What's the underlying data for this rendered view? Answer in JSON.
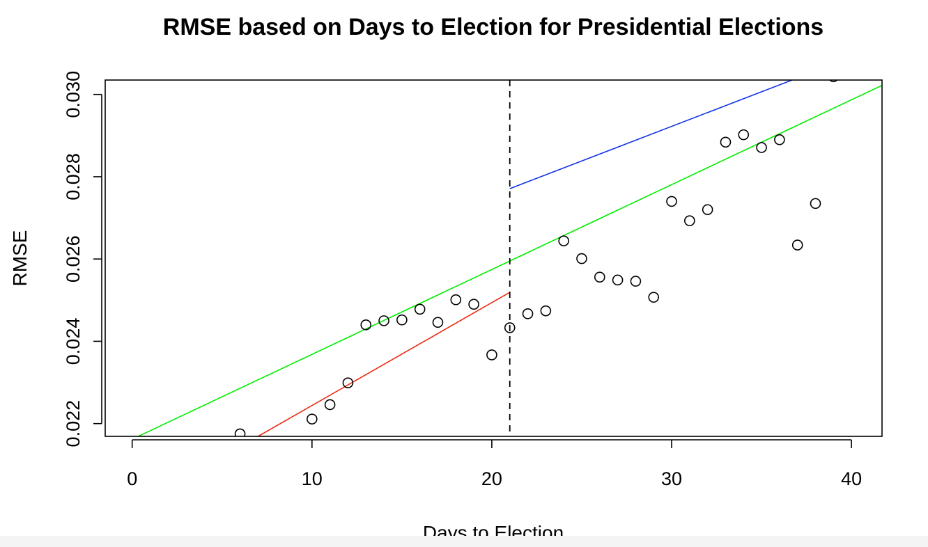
{
  "chart_data": {
    "type": "scatter",
    "title": "RMSE based on Days to Election for Presidential Elections",
    "xlabel": "Days to Election",
    "ylabel": "RMSE",
    "xlim": [
      -1.5,
      41.7
    ],
    "ylim": [
      0.02169,
      0.03035
    ],
    "xticks": [
      0,
      10,
      20,
      30,
      40
    ],
    "xtick_labels": [
      "0",
      "10",
      "20",
      "30",
      "40"
    ],
    "yticks": [
      0.022,
      0.024,
      0.026,
      0.028,
      0.03
    ],
    "ytick_labels": [
      "0.022",
      "0.024",
      "0.026",
      "0.028",
      "0.030"
    ],
    "grid": false,
    "points": [
      {
        "x": 6,
        "y": 0.02175
      },
      {
        "x": 10,
        "y": 0.02211
      },
      {
        "x": 11,
        "y": 0.02246
      },
      {
        "x": 12,
        "y": 0.02299
      },
      {
        "x": 13,
        "y": 0.0244
      },
      {
        "x": 14,
        "y": 0.0245
      },
      {
        "x": 15,
        "y": 0.02452
      },
      {
        "x": 16,
        "y": 0.02478
      },
      {
        "x": 17,
        "y": 0.02446
      },
      {
        "x": 18,
        "y": 0.02501
      },
      {
        "x": 19,
        "y": 0.0249
      },
      {
        "x": 20,
        "y": 0.02367
      },
      {
        "x": 21,
        "y": 0.02433
      },
      {
        "x": 22,
        "y": 0.02467
      },
      {
        "x": 23,
        "y": 0.02474
      },
      {
        "x": 24,
        "y": 0.02644
      },
      {
        "x": 25,
        "y": 0.02601
      },
      {
        "x": 26,
        "y": 0.02556
      },
      {
        "x": 27,
        "y": 0.02549
      },
      {
        "x": 28,
        "y": 0.02546
      },
      {
        "x": 29,
        "y": 0.02507
      },
      {
        "x": 30,
        "y": 0.0274
      },
      {
        "x": 31,
        "y": 0.02693
      },
      {
        "x": 32,
        "y": 0.0272
      },
      {
        "x": 33,
        "y": 0.02884
      },
      {
        "x": 34,
        "y": 0.02902
      },
      {
        "x": 35,
        "y": 0.02871
      },
      {
        "x": 36,
        "y": 0.0289
      },
      {
        "x": 37,
        "y": 0.02634
      },
      {
        "x": 38,
        "y": 0.02735
      },
      {
        "x": 39,
        "y": 0.03043
      }
    ],
    "lines": [
      {
        "color": "#00ee00",
        "from": [
          0,
          0.02162
        ],
        "to": [
          41.7,
          0.03022
        ]
      },
      {
        "color": "#ee2a10",
        "from": [
          7,
          0.02169
        ],
        "to": [
          21,
          0.02519
        ]
      },
      {
        "color": "#1033e6",
        "from": [
          21,
          0.02771
        ],
        "to": [
          36.7,
          0.03035
        ]
      }
    ],
    "cutoff": {
      "x": 21,
      "style": "dashed",
      "color": "#000000"
    }
  }
}
